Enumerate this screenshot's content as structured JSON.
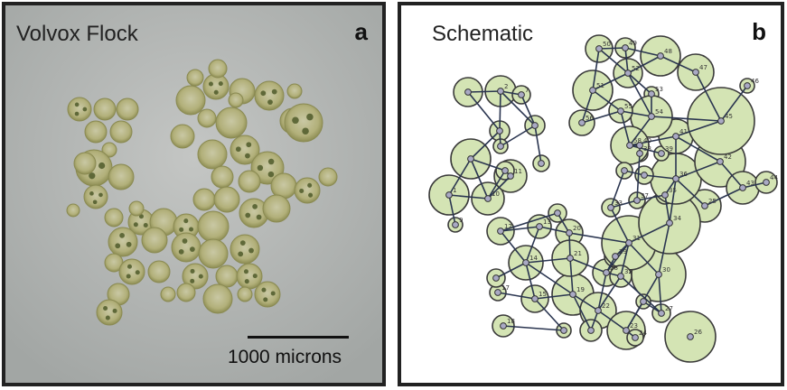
{
  "panel_a": {
    "title": "Volvox Flock",
    "letter": "a",
    "scale_label": "1000 microns"
  },
  "panel_b": {
    "title": "Schematic",
    "letter": "b",
    "colors": {
      "colony_fill": "#d4e4b4",
      "colony_stroke": "#3a3a3a",
      "node": "#a9a9c4",
      "edge": "#2a3550"
    },
    "node_labels": [
      "1",
      "2",
      "7",
      "9",
      "10",
      "11",
      "12",
      "13",
      "14",
      "15",
      "17",
      "18",
      "19",
      "20",
      "21",
      "22",
      "23",
      "24",
      "25",
      "26",
      "27",
      "28",
      "29",
      "30",
      "31",
      "32",
      "33",
      "34",
      "35",
      "36",
      "37",
      "38",
      "39",
      "40",
      "41",
      "42",
      "43",
      "44",
      "45",
      "46",
      "47",
      "48",
      "49",
      "50",
      "51",
      "52",
      "53",
      "54",
      "55",
      "56",
      "58"
    ]
  }
}
